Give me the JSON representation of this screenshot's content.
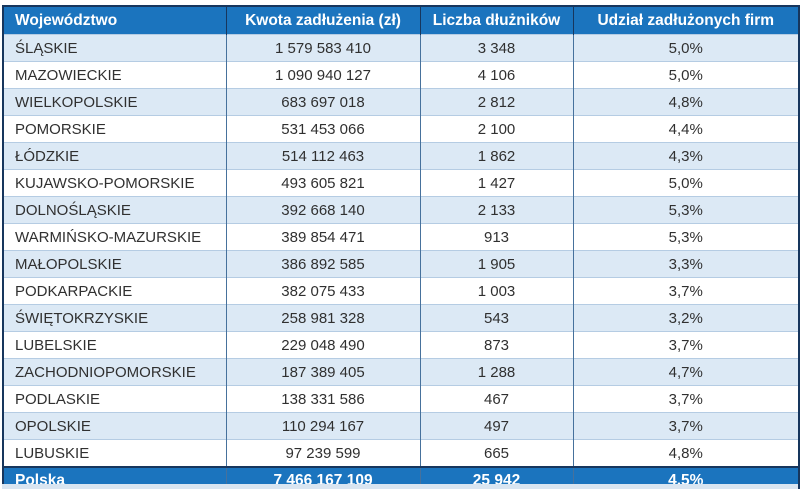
{
  "chart_data": {
    "type": "table",
    "columns": [
      "Województwo",
      "Kwota zadłużenia (zł)",
      "Liczba dłużników",
      "Udział zadłużonych firm"
    ],
    "rows": [
      [
        "ŚLĄSKIE",
        "1 579 583 410",
        "3 348",
        "5,0%"
      ],
      [
        "MAZOWIECKIE",
        "1 090 940 127",
        "4 106",
        "5,0%"
      ],
      [
        "WIELKOPOLSKIE",
        "683 697 018",
        "2 812",
        "4,8%"
      ],
      [
        "POMORSKIE",
        "531 453 066",
        "2 100",
        "4,4%"
      ],
      [
        "ŁÓDZKIE",
        "514 112 463",
        "1 862",
        "4,3%"
      ],
      [
        "KUJAWSKO-POMORSKIE",
        "493 605 821",
        "1 427",
        "5,0%"
      ],
      [
        "DOLNOŚLĄSKIE",
        "392 668 140",
        "2 133",
        "5,3%"
      ],
      [
        "WARMIŃSKO-MAZURSKIE",
        "389 854 471",
        "913",
        "5,3%"
      ],
      [
        "MAŁOPOLSKIE",
        "386 892 585",
        "1 905",
        "3,3%"
      ],
      [
        "PODKARPACKIE",
        "382 075 433",
        "1 003",
        "3,7%"
      ],
      [
        "ŚWIĘTOKRZYSKIE",
        "258 981 328",
        "543",
        "3,2%"
      ],
      [
        "LUBELSKIE",
        "229 048 490",
        "873",
        "3,7%"
      ],
      [
        "ZACHODNIOPOMORSKIE",
        "187 389 405",
        "1 288",
        "4,7%"
      ],
      [
        "PODLASKIE",
        "138 331 586",
        "467",
        "3,7%"
      ],
      [
        "OPOLSKIE",
        "110 294 167",
        "497",
        "3,7%"
      ],
      [
        "LUBUSKIE",
        "97 239 599",
        "665",
        "4,8%"
      ]
    ],
    "total_row": [
      "Polska",
      "7 466 167 109",
      "25 942",
      "4,5%"
    ],
    "cell_names": [
      "region",
      "debt-amount",
      "debtor-count",
      "debtor-share"
    ]
  },
  "colors": {
    "header_bg": "#1B74BE",
    "header_text": "#FFFFFF",
    "outer_border": "#17365D",
    "col_border": "#46719C",
    "row_border": "#B5CCE3",
    "row_bg": "#FFFFFF",
    "row_alt_bg": "#DCE9F5",
    "text": "#303030",
    "strip_bg": "#D9E5F1"
  }
}
